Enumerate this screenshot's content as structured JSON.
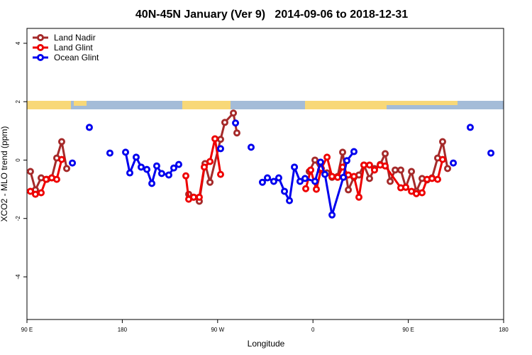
{
  "chart_data": {
    "type": "line",
    "title": "40N-45N January (Ver 9)   2014-09-06 to 2018-12-31",
    "x_label": "Longitude",
    "y_label": "XCO2 - MLO trend (ppm)",
    "xlim": [
      90,
      540
    ],
    "xticks": [
      {
        "value": 90,
        "label": "90 E"
      },
      {
        "value": 180,
        "label": "180"
      },
      {
        "value": 270,
        "label": "90 W"
      },
      {
        "value": 360,
        "label": "0"
      },
      {
        "value": 450,
        "label": "90 E"
      },
      {
        "value": 540,
        "label": "180"
      }
    ],
    "ylim": [
      -5.46,
      4.51
    ],
    "yticks": [
      -4,
      -2,
      0,
      2,
      4
    ],
    "legend": "topleft",
    "series": [
      {
        "name": "Land Nadir",
        "color": "#a52a2a",
        "x": [
          93.3,
          98.0,
          103.4,
          108.8,
          113.4,
          118.1,
          122.8,
          127.5,
          null,
          242.7,
          247.4,
          252.7,
          258.1,
          262.8,
          272.8,
          276.8,
          284.9,
          288.2,
          null,
          356.5,
          361.9,
          367.2,
          373.3,
          378.0,
          383.3,
          388.0,
          393.4,
          398.7,
          403.4,
          408.1,
          413.4,
          418.1,
          423.5,
          428.2,
          432.9,
          437.6,
          442.9,
          447.6,
          453.0,
          457.6,
          463.0,
          467.7,
          472.4,
          477.7,
          482.4,
          487.1
        ],
        "values": [
          -0.39,
          -1.02,
          -0.61,
          -0.66,
          -0.61,
          0.07,
          0.63,
          -0.29,
          null,
          -1.17,
          -1.27,
          -1.41,
          -0.12,
          -0.76,
          0.71,
          1.29,
          1.61,
          0.93,
          null,
          -0.39,
          0,
          -0.34,
          -0.44,
          -0.59,
          -0.56,
          0.27,
          -1.02,
          -0.59,
          -0.51,
          -0.17,
          -0.63,
          -0.29,
          -0.15,
          0.22,
          -0.73,
          -0.34,
          -0.34,
          -0.93,
          -0.39,
          -1.07,
          -0.63,
          -0.68,
          -0.61,
          0.07,
          0.63,
          -0.29
        ]
      },
      {
        "name": "Land Glint",
        "color": "#ee0000",
        "x": [
          93.3,
          98.0,
          103.4,
          108.1,
          113.4,
          118.1,
          122.8,
          null,
          240.0,
          242.7,
          247.4,
          252.7,
          257.4,
          262.8,
          267.5,
          272.8,
          null,
          353.2,
          357.9,
          363.2,
          367.9,
          373.3,
          378.0,
          383.3,
          388.0,
          393.4,
          398.7,
          403.4,
          408.1,
          413.4,
          418.1,
          423.5,
          428.2,
          442.9,
          447.6,
          453.0,
          457.6,
          463.0,
          467.7,
          472.4,
          477.7,
          482.4
        ],
        "values": [
          -1.07,
          -1.17,
          -1.12,
          -0.66,
          -0.61,
          -0.66,
          0.02,
          null,
          -0.54,
          -1.34,
          -1.27,
          -1.27,
          -0.24,
          -0.05,
          0.73,
          -0.49,
          null,
          -0.98,
          -0.34,
          -1.0,
          -0.29,
          0.1,
          -0.56,
          -0.59,
          -0.24,
          -0.51,
          -0.56,
          -1.27,
          -0.17,
          -0.17,
          -0.34,
          -0.17,
          -0.2,
          -0.95,
          -0.93,
          -1.07,
          -1.15,
          -1.12,
          -0.66,
          -0.63,
          -0.66,
          0.02
        ]
      },
      {
        "name": "Ocean Glint",
        "color": "#0000ee",
        "x": [
          132.9,
          null,
          148.9,
          null,
          168.3,
          null,
          183.1,
          187.1,
          193.1,
          197.8,
          203.2,
          207.9,
          212.5,
          217.2,
          223.9,
          228.6,
          233.3,
          null,
          272.8,
          null,
          286.9,
          null,
          301.6,
          null,
          312.3,
          317.0,
          323.0,
          327.7,
          333.1,
          337.8,
          342.5,
          347.8,
          352.5,
          361.9,
          367.2,
          371.3,
          378.0,
          388.7,
          392.0,
          398.7,
          null,
          492.5,
          null,
          508.5,
          null,
          528.0
        ],
        "values": [
          -0.1,
          null,
          1.12,
          null,
          0.24,
          null,
          0.27,
          -0.44,
          0.1,
          -0.24,
          -0.32,
          -0.8,
          -0.2,
          -0.46,
          -0.51,
          -0.27,
          -0.15,
          null,
          0.39,
          null,
          1.27,
          null,
          0.44,
          null,
          -0.76,
          -0.61,
          -0.73,
          -0.61,
          -1.07,
          -1.39,
          -0.24,
          -0.73,
          -0.63,
          -0.73,
          -0.07,
          -0.49,
          -1.88,
          -0.59,
          -0.02,
          0.29,
          null,
          -0.1,
          null,
          1.12,
          null,
          0.24
        ]
      }
    ]
  }
}
